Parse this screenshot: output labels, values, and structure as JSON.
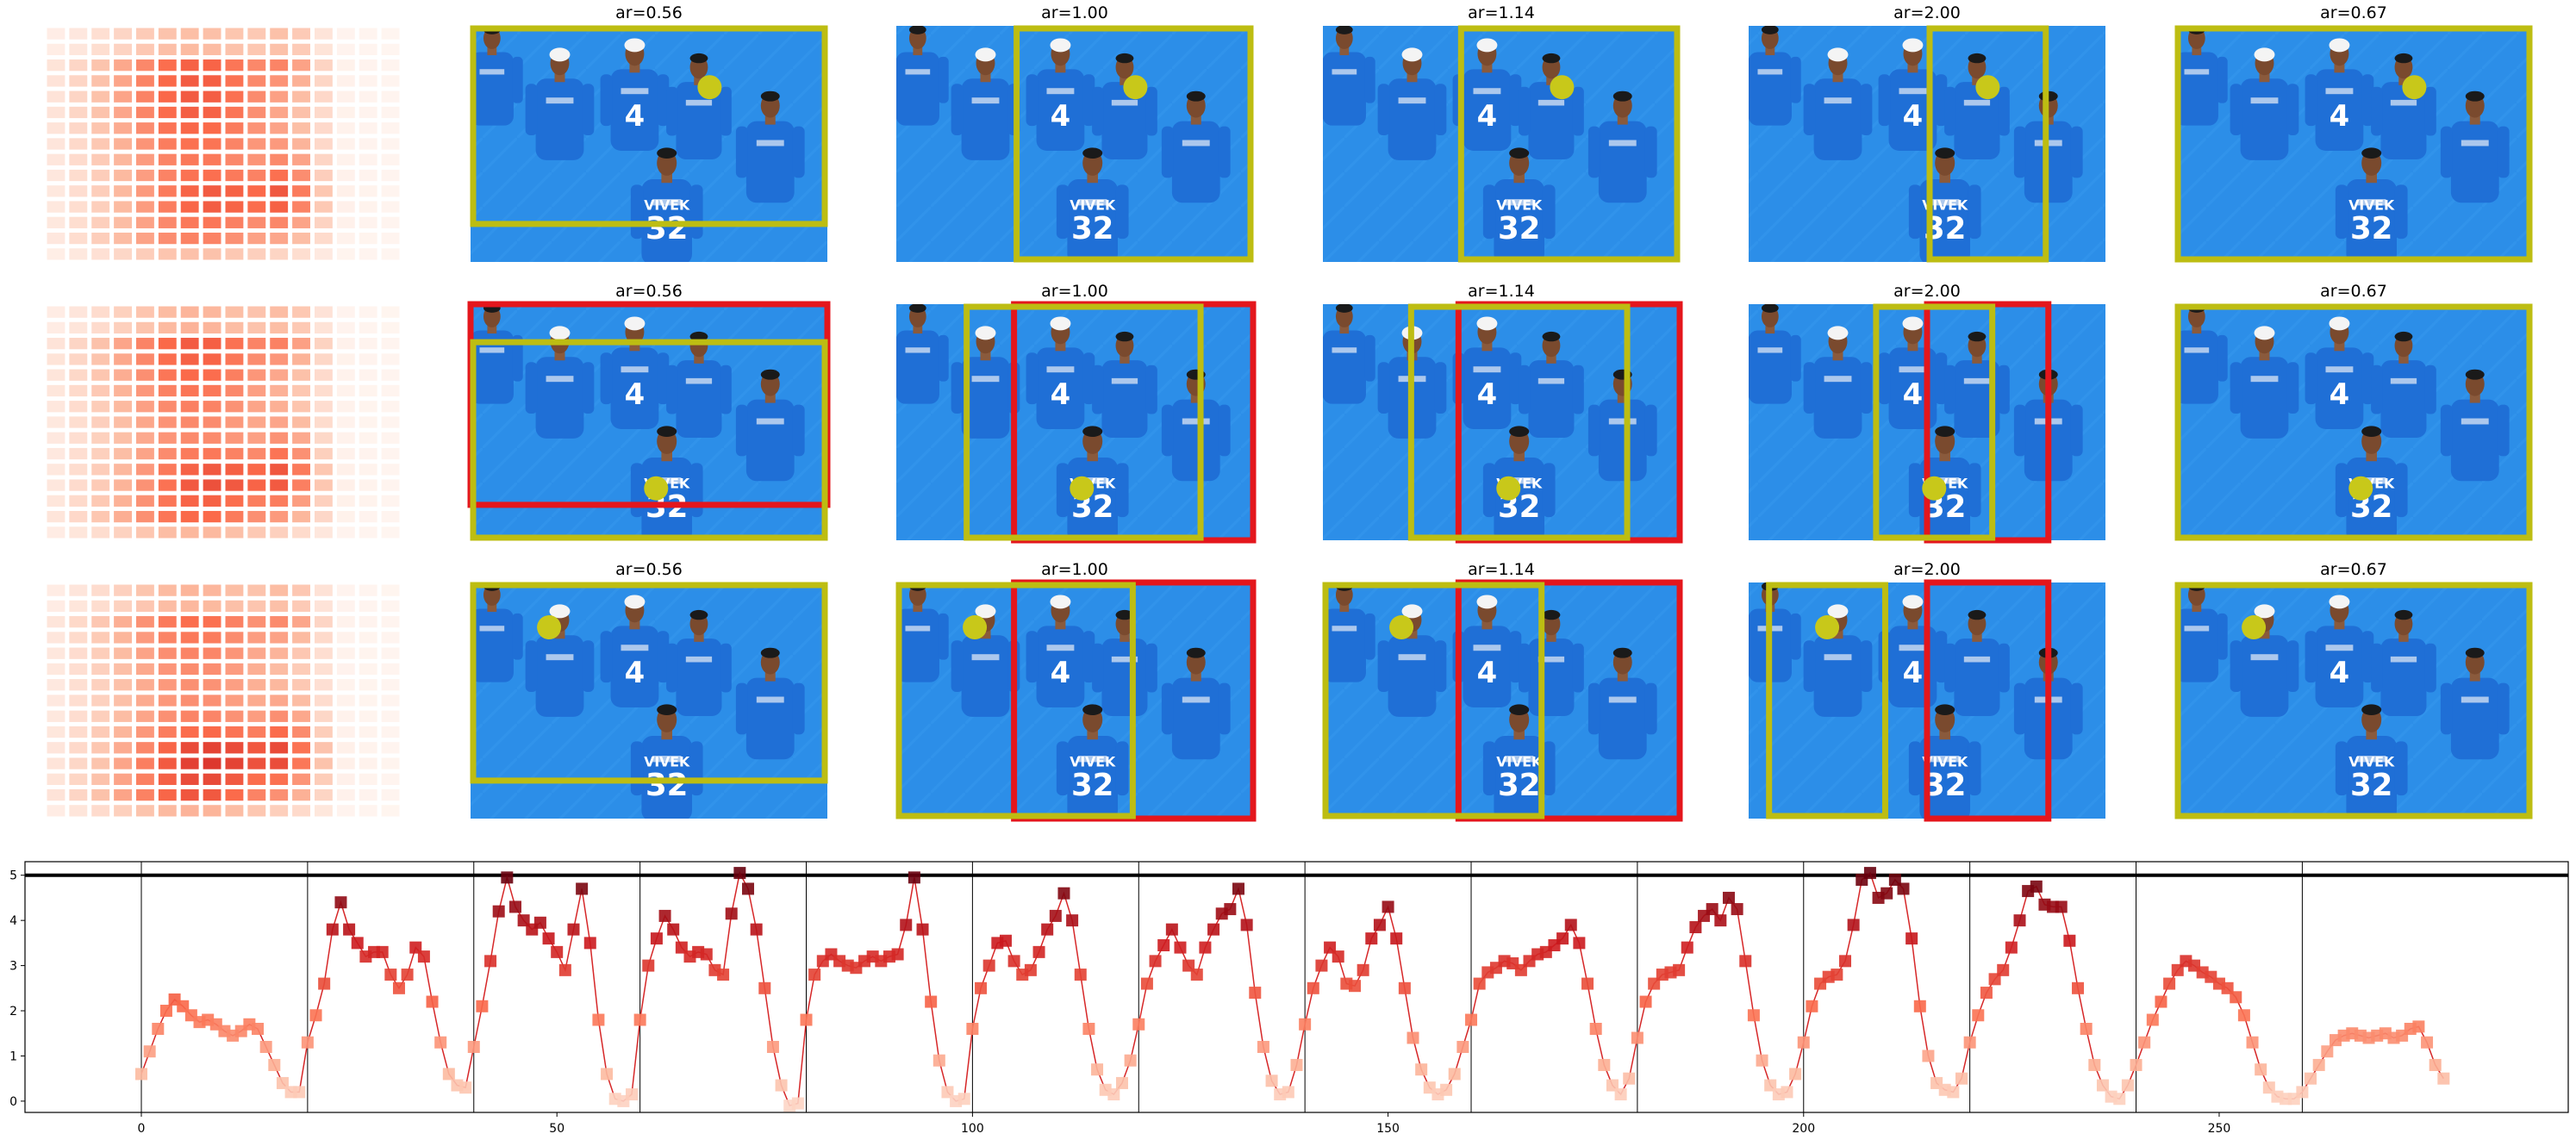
{
  "figure": {
    "columns": [
      {
        "ar": null,
        "title": ""
      },
      {
        "ar": 0.56,
        "title": "ar=0.56"
      },
      {
        "ar": 1.0,
        "title": "ar=1.00"
      },
      {
        "ar": 1.14,
        "title": "ar=1.14"
      },
      {
        "ar": 2.0,
        "title": "ar=2.00"
      },
      {
        "ar": 0.67,
        "title": "ar=0.67"
      }
    ],
    "rows": 3,
    "colors": {
      "crop_box": "#bdbd12",
      "prev_box": "#e4161c",
      "focus_dot": "#c8c81a",
      "jersey": "#1f6fd6",
      "field": "#2c8ee8"
    },
    "photo_content": {
      "jersey_names": [
        "VIVEK"
      ],
      "jersey_numbers": [
        "4",
        "32"
      ]
    }
  },
  "chart_data": {
    "type": "line",
    "title": "",
    "xlabel": "",
    "ylabel": "",
    "xlim": [
      -14,
      292
    ],
    "ylim": [
      -0.25,
      5.3
    ],
    "xticks": [
      0,
      50,
      100,
      150,
      200,
      250
    ],
    "yticks": [
      0,
      1,
      2,
      3,
      4,
      5
    ],
    "hline": 5.0,
    "segment_boundaries": [
      0,
      20,
      40,
      60,
      80,
      100,
      120,
      140,
      160,
      180,
      200,
      220,
      240,
      260
    ],
    "line_color": "#d62728",
    "marker": "square",
    "series": [
      {
        "values": [
          0.6,
          1.1,
          1.6,
          2.0,
          2.25,
          2.1,
          1.9,
          1.75,
          1.8,
          1.7,
          1.55,
          1.45,
          1.55,
          1.7,
          1.6,
          1.2,
          0.8,
          0.4,
          0.2,
          0.2,
          1.3,
          1.9,
          2.6,
          3.8,
          4.4,
          3.8,
          3.5,
          3.2,
          3.3,
          3.3,
          2.8,
          2.5,
          2.8,
          3.4,
          3.2,
          2.2,
          1.3,
          0.6,
          0.35,
          0.3,
          1.2,
          2.1,
          3.1,
          4.2,
          4.95,
          4.3,
          4.0,
          3.8,
          3.95,
          3.6,
          3.3,
          2.9,
          3.8,
          4.7,
          3.5,
          1.8,
          0.6,
          0.05,
          0.0,
          0.15,
          1.8,
          3.0,
          3.6,
          4.1,
          3.8,
          3.4,
          3.2,
          3.3,
          3.25,
          2.9,
          2.8,
          4.15,
          5.05,
          4.7,
          3.8,
          2.5,
          1.2,
          0.35,
          -0.1,
          -0.05,
          1.8,
          2.8,
          3.1,
          3.25,
          3.1,
          3.0,
          2.95,
          3.1,
          3.2,
          3.1,
          3.2,
          3.25,
          3.9,
          4.95,
          3.8,
          2.2,
          0.9,
          0.2,
          0.0,
          0.05,
          1.6,
          2.5,
          3.0,
          3.5,
          3.55,
          3.1,
          2.8,
          2.9,
          3.3,
          3.8,
          4.1,
          4.6,
          4.0,
          2.8,
          1.6,
          0.7,
          0.25,
          0.15,
          0.4,
          0.9,
          1.7,
          2.6,
          3.1,
          3.45,
          3.8,
          3.4,
          3.0,
          2.8,
          3.4,
          3.8,
          4.15,
          4.25,
          4.7,
          3.9,
          2.4,
          1.2,
          0.45,
          0.15,
          0.2,
          0.8,
          1.7,
          2.5,
          3.0,
          3.4,
          3.2,
          2.6,
          2.55,
          2.9,
          3.6,
          3.9,
          4.3,
          3.6,
          2.5,
          1.4,
          0.7,
          0.3,
          0.15,
          0.25,
          0.6,
          1.2,
          1.8,
          2.6,
          2.85,
          2.95,
          3.1,
          3.05,
          2.9,
          3.1,
          3.25,
          3.3,
          3.45,
          3.6,
          3.9,
          3.5,
          2.6,
          1.6,
          0.8,
          0.35,
          0.15,
          0.5,
          1.4,
          2.2,
          2.6,
          2.8,
          2.85,
          2.9,
          3.4,
          3.85,
          4.1,
          4.25,
          4.0,
          4.5,
          4.25,
          3.1,
          1.9,
          0.9,
          0.35,
          0.15,
          0.2,
          0.6,
          1.3,
          2.1,
          2.6,
          2.75,
          2.8,
          3.1,
          3.9,
          4.9,
          5.05,
          4.5,
          4.6,
          4.9,
          4.7,
          3.6,
          2.1,
          1.0,
          0.4,
          0.25,
          0.2,
          0.5,
          1.3,
          1.9,
          2.4,
          2.7,
          2.9,
          3.4,
          4.0,
          4.65,
          4.75,
          4.35,
          4.3,
          4.3,
          3.55,
          2.5,
          1.6,
          0.8,
          0.35,
          0.1,
          0.05,
          0.35,
          0.8,
          1.3,
          1.8,
          2.2,
          2.6,
          2.9,
          3.1,
          3.0,
          2.85,
          2.75,
          2.6,
          2.5,
          2.3,
          1.9,
          1.3,
          0.7,
          0.3,
          0.1,
          0.05,
          0.05,
          0.2,
          0.5,
          0.8,
          1.1,
          1.35,
          1.45,
          1.5,
          1.45,
          1.4,
          1.45,
          1.5,
          1.4,
          1.45,
          1.6,
          1.65,
          1.3,
          0.8,
          0.5
        ]
      }
    ]
  }
}
